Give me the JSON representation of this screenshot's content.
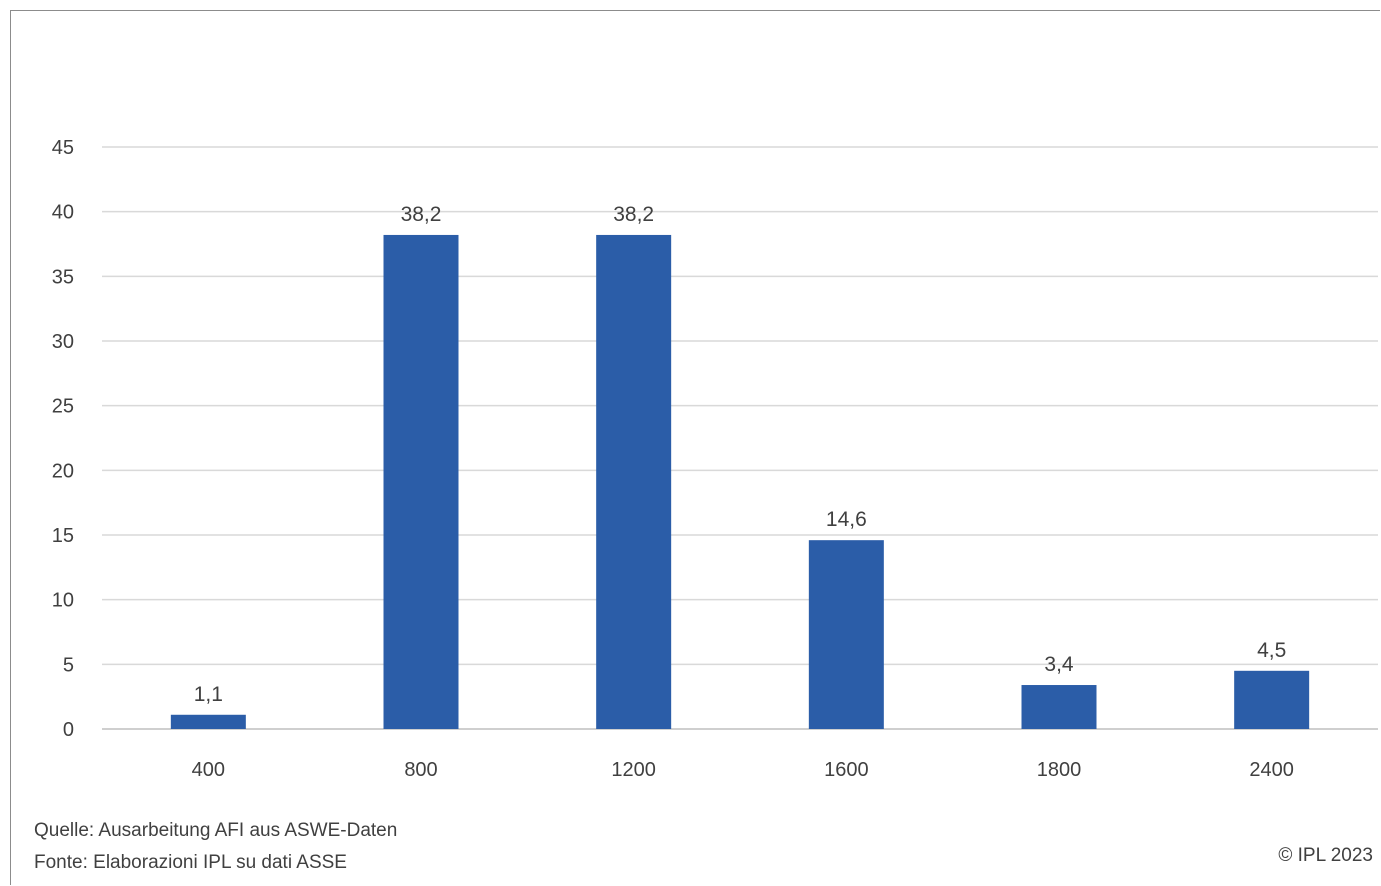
{
  "chart_data": {
    "type": "bar",
    "categories": [
      "400",
      "800",
      "1200",
      "1600",
      "1800",
      "2400"
    ],
    "values": [
      1.1,
      38.2,
      38.2,
      14.6,
      3.4,
      4.5
    ],
    "data_labels": [
      "1,1",
      "38,2",
      "38,2",
      "14,6",
      "3,4",
      "4,5"
    ],
    "title": "",
    "xlabel": "",
    "ylabel": "",
    "ylim": [
      0,
      45
    ],
    "yticks": [
      "0",
      "5",
      "10",
      "15",
      "20",
      "25",
      "30",
      "35",
      "40",
      "45"
    ],
    "grid": true,
    "bar_color": "#2b5da8",
    "grid_color": "#d9d9d9",
    "axis_color": "#bfbfbf"
  },
  "footer": {
    "source_de": "Quelle: Ausarbeitung AFI aus ASWE-Daten",
    "source_it": "Fonte: Elaborazioni IPL su dati ASSE",
    "copyright": "© IPL 2023"
  }
}
